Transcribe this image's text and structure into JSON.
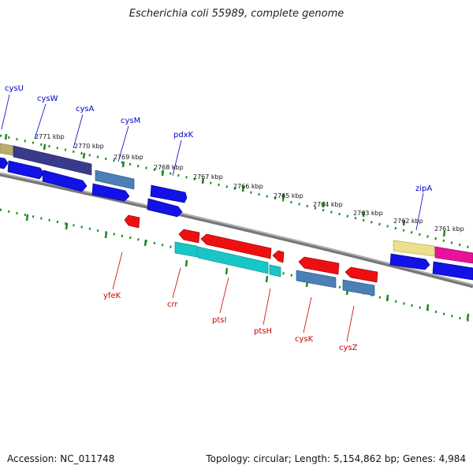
{
  "title": "Escherichia coli 55989, complete genome",
  "footer": {
    "accession": "Accession: NC_011748",
    "summary": "Topology: circular; Length: 5,154,862 bp; Genes: 4,984"
  },
  "colors": {
    "forward_cds": "#1010ee",
    "reverse_cds": "#ee1010",
    "backbone": "#8a8a8a",
    "tick_green": "#1a8c1a",
    "label_forward": "#0000cc",
    "label_reverse": "#cc0000",
    "gene_olive": "#b7ad6d",
    "gene_darkblue": "#3a3a8c",
    "gene_steel": "#4b7fb6",
    "gene_cyan": "#19c6c6",
    "gene_yellow": "#ece08f",
    "gene_pink": "#e8129a"
  },
  "scale": {
    "ticks": [
      "2771 kbp",
      "2770 kbp",
      "2769 kbp",
      "2768 kbp",
      "2767 kbp",
      "2766 kbp",
      "2765 kbp",
      "2764 kbp",
      "2763 kbp",
      "2762 kbp",
      "2761 kbp"
    ]
  },
  "labels": {
    "forward": [
      "cysU",
      "cysW",
      "cysA",
      "cysM",
      "pdxK",
      "zipA"
    ],
    "reverse": [
      "yfeK",
      "crr",
      "ptsI",
      "ptsH",
      "cysK",
      "cysZ"
    ]
  }
}
